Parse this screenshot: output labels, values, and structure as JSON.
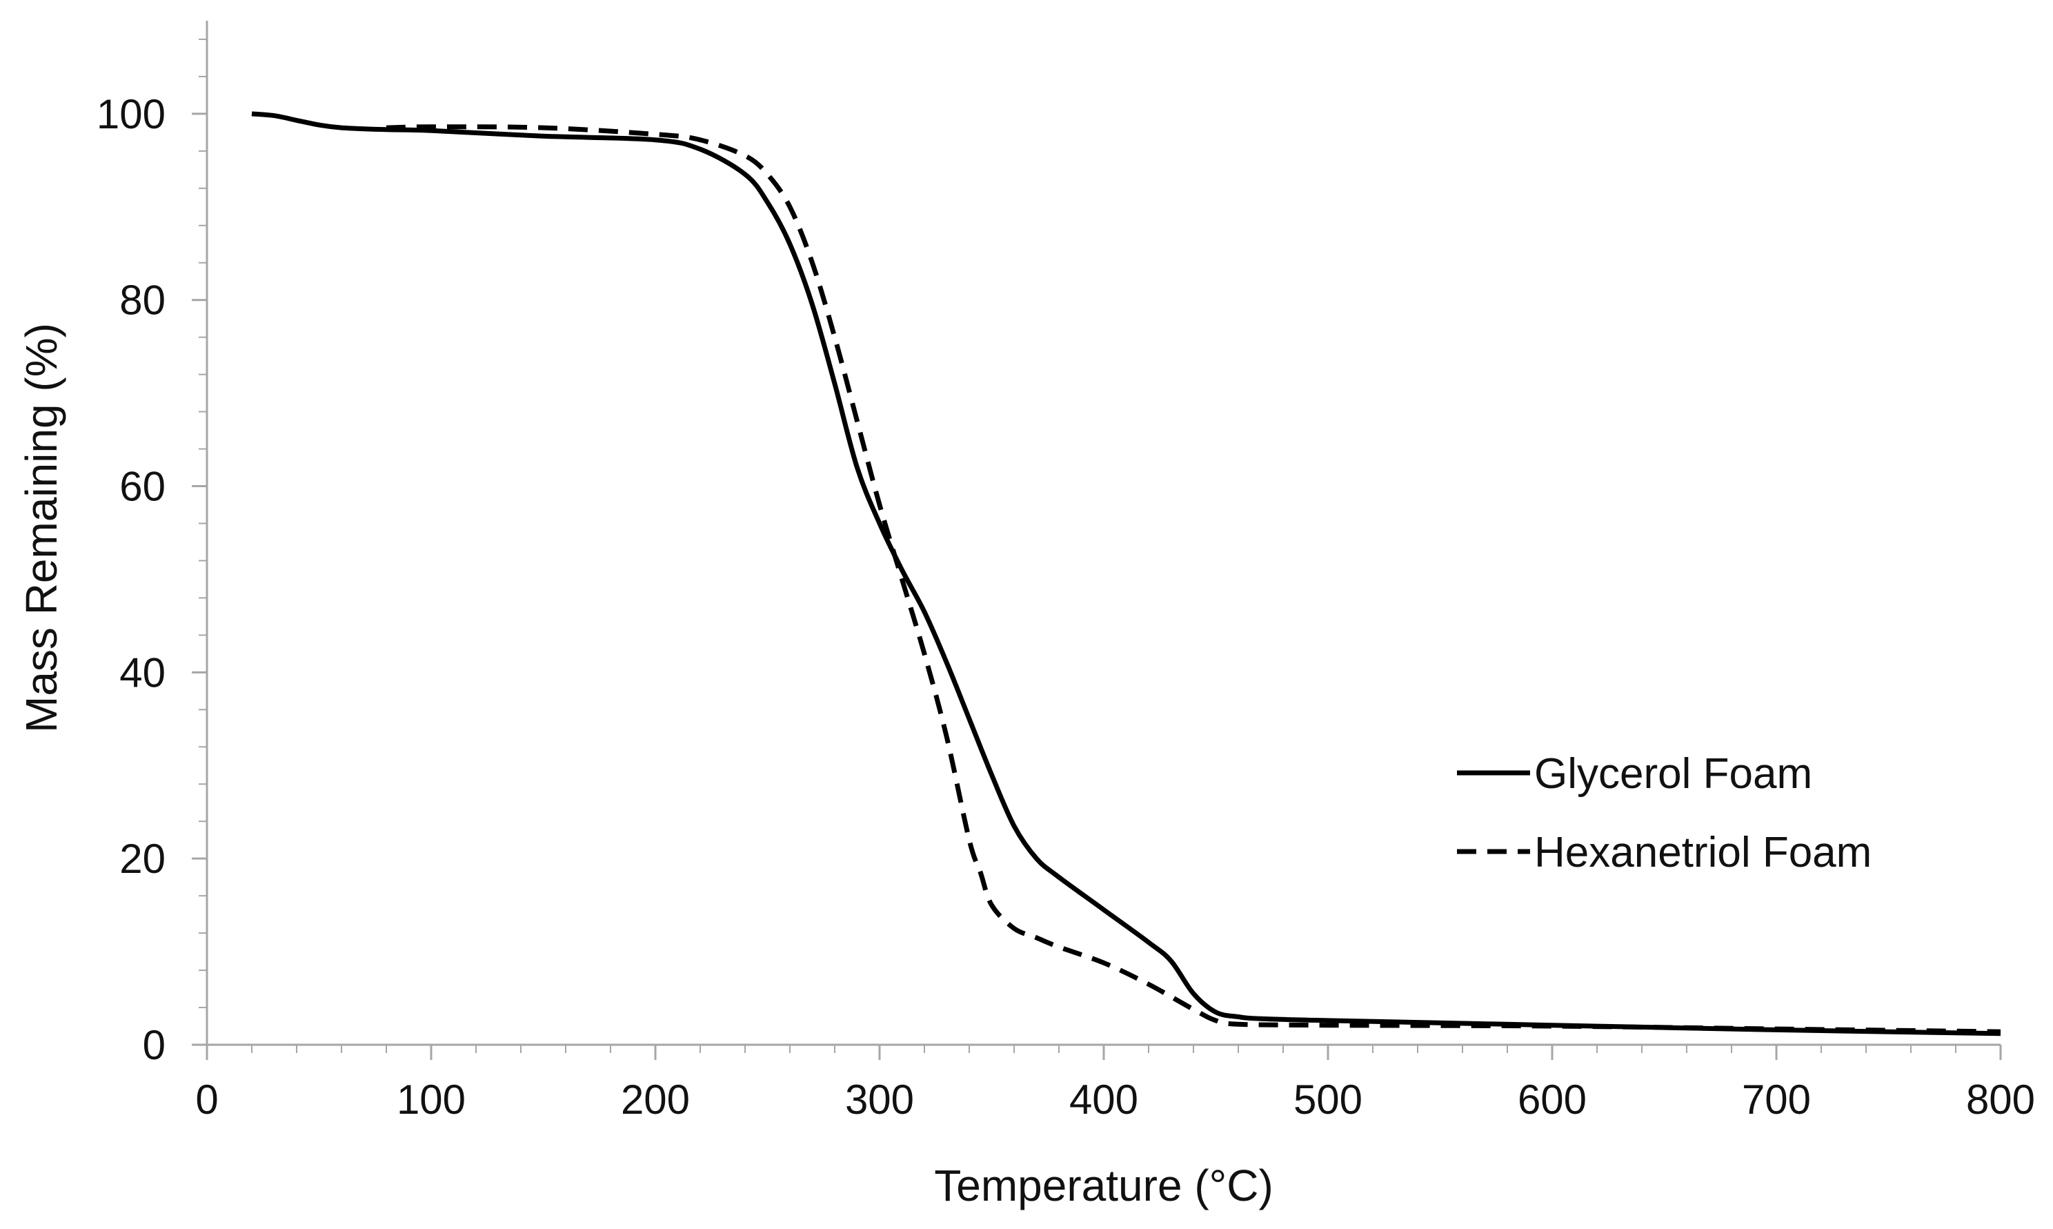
{
  "chart_data": {
    "type": "line",
    "title": "",
    "xlabel": "Temperature (°C)",
    "ylabel": "Mass Remaining (%)",
    "xlim": [
      0,
      800
    ],
    "ylim": [
      0,
      110
    ],
    "x_ticks": [
      0,
      100,
      200,
      300,
      400,
      500,
      600,
      700,
      800
    ],
    "x_tick_labels": [
      "0",
      "100",
      "200",
      "300",
      "400",
      "500",
      "600",
      "700",
      "800"
    ],
    "y_ticks": [
      0,
      20,
      40,
      60,
      80,
      100
    ],
    "y_tick_labels": [
      "0",
      "20",
      "40",
      "60",
      "80",
      "100"
    ],
    "x_minor_step": 20,
    "y_minor_step": 4,
    "grid": false,
    "legend_position": "right",
    "colors": {
      "line": "#000000",
      "axis": "#a6a6a6",
      "text": "#111111"
    },
    "series": [
      {
        "name": "Glycerol Foam",
        "style": "solid",
        "x": [
          20,
          30,
          40,
          50,
          60,
          80,
          100,
          150,
          200,
          220,
          240,
          250,
          260,
          270,
          280,
          290,
          300,
          310,
          320,
          330,
          340,
          350,
          360,
          370,
          380,
          400,
          420,
          430,
          440,
          450,
          460,
          470,
          500,
          600,
          700,
          800
        ],
        "y": [
          100,
          99.8,
          99.3,
          98.8,
          98.5,
          98.3,
          98.2,
          97.6,
          97.2,
          96.2,
          93.5,
          90.5,
          86,
          79.5,
          71,
          62,
          56,
          51,
          46.5,
          41,
          35,
          29,
          23.5,
          20,
          18,
          14.5,
          11,
          9,
          5.5,
          3.5,
          3,
          2.8,
          2.6,
          2.1,
          1.6,
          1.2
        ]
      },
      {
        "name": "Hexanetriol Foam",
        "style": "dashed",
        "x": [
          80,
          100,
          150,
          200,
          220,
          240,
          250,
          260,
          270,
          280,
          290,
          300,
          310,
          320,
          330,
          340,
          345,
          350,
          360,
          370,
          380,
          400,
          420,
          440,
          450,
          460,
          500,
          600,
          700,
          800
        ],
        "y": [
          98.5,
          98.6,
          98.5,
          97.8,
          97.2,
          95.5,
          93.5,
          90,
          84,
          76,
          67,
          58,
          50,
          42,
          33,
          22,
          18.5,
          15,
          12.5,
          11.5,
          10.5,
          8.8,
          6.5,
          3.8,
          2.6,
          2.2,
          2.1,
          2,
          1.7,
          1.4
        ]
      }
    ]
  }
}
